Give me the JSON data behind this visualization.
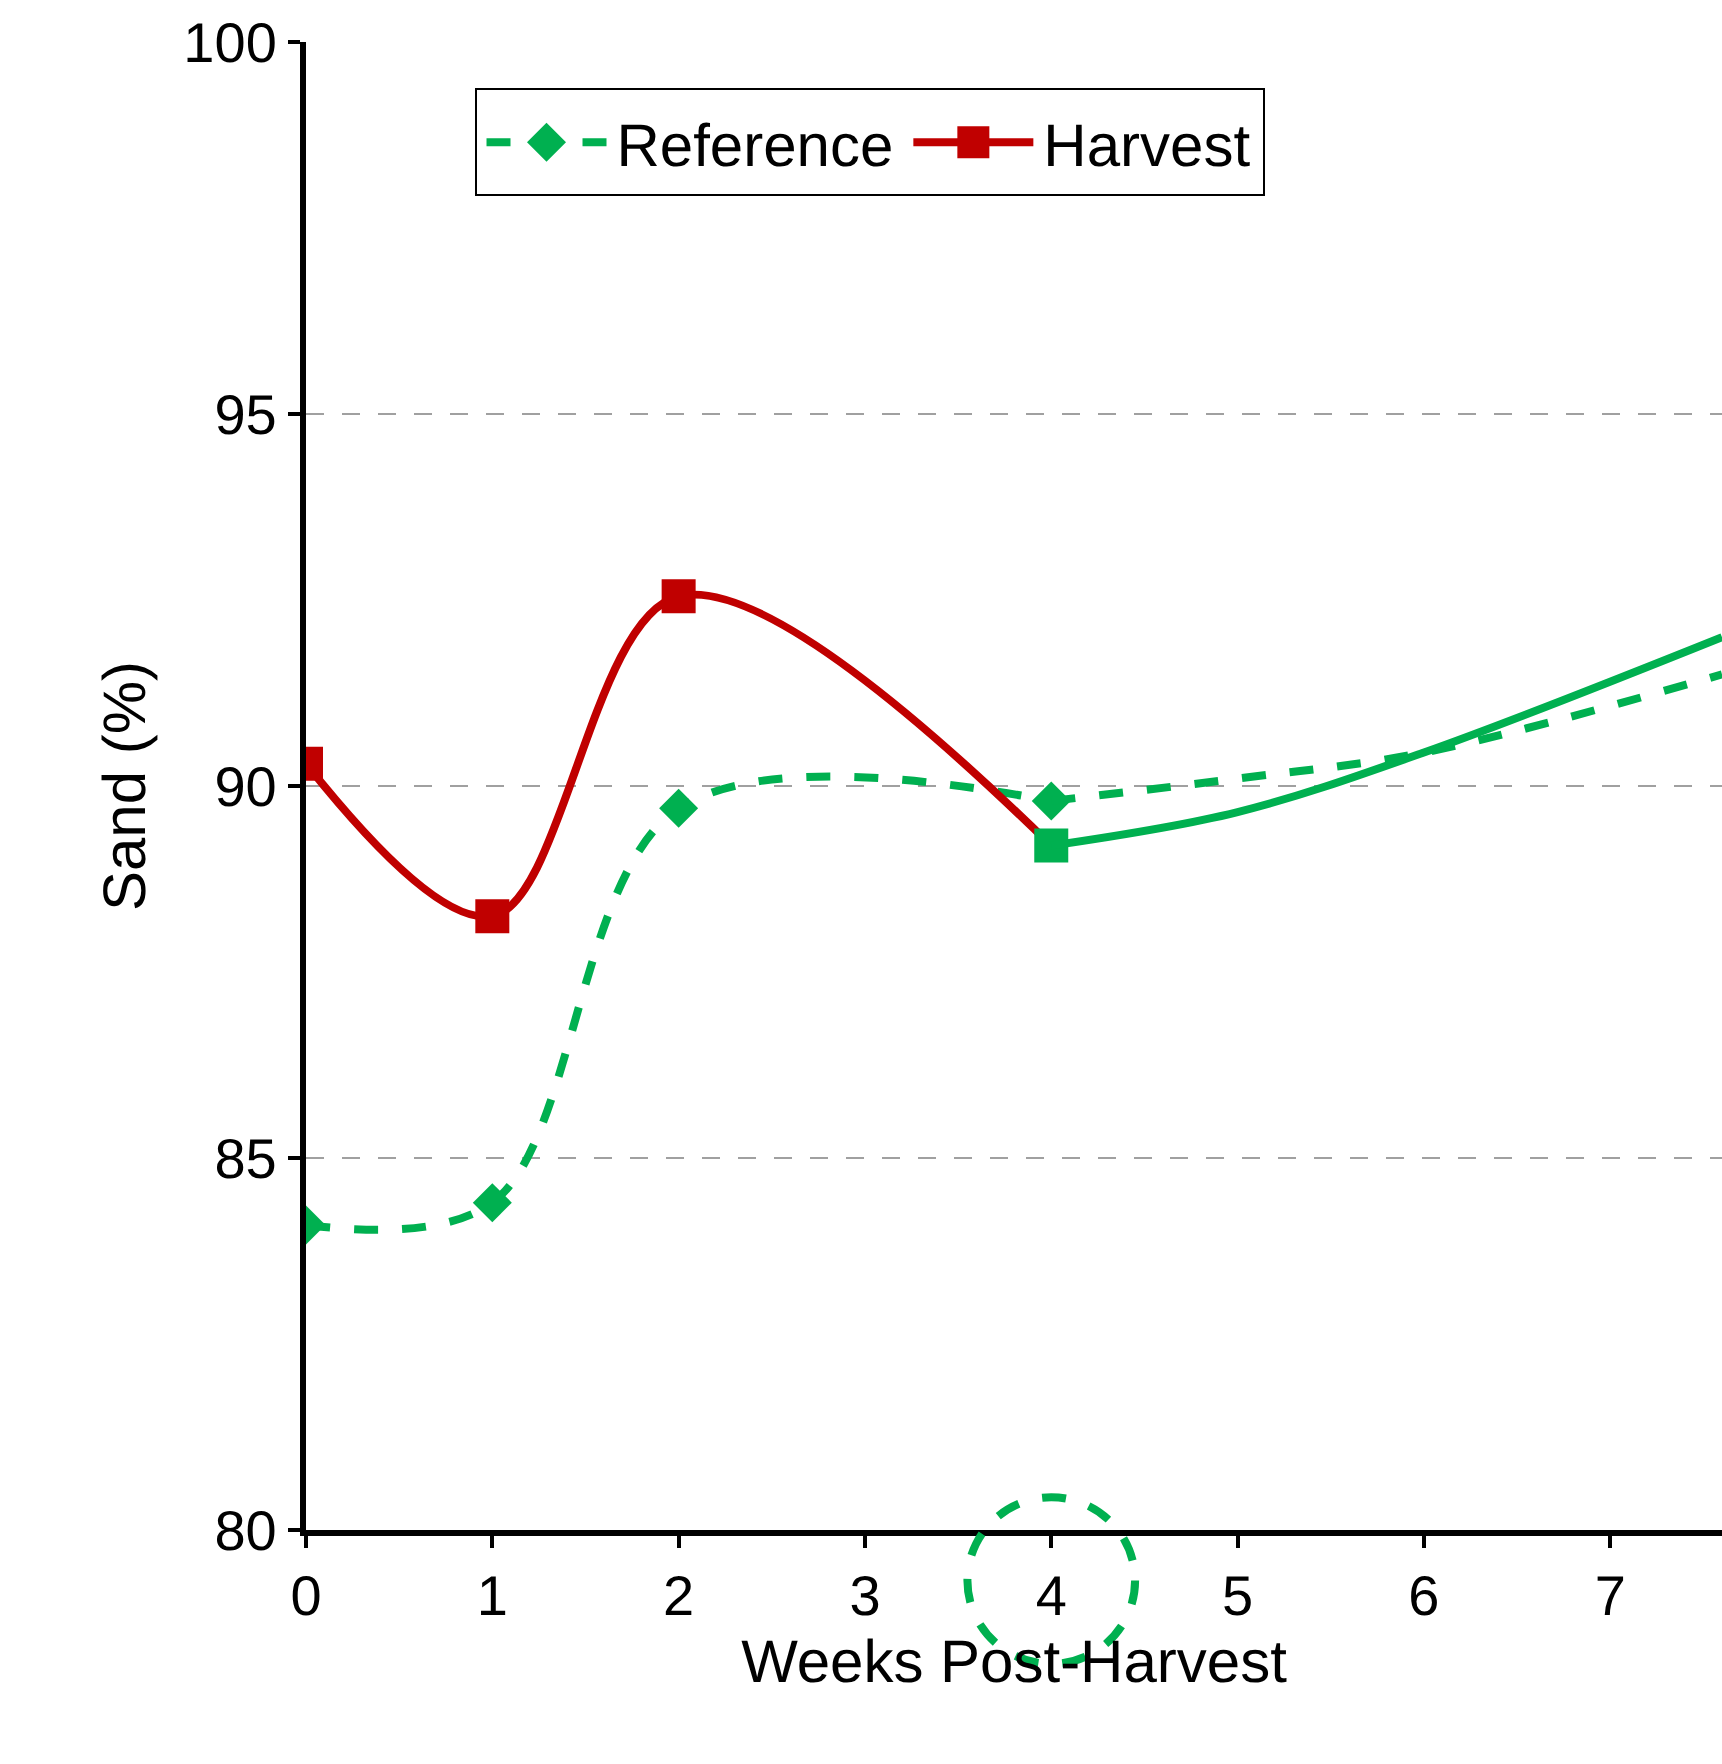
{
  "chart_data": {
    "type": "line",
    "xlabel": "Weeks Post-Harvest",
    "ylabel": "Sand (%)",
    "xlim": [
      0,
      7.6
    ],
    "xticks": [
      0,
      1,
      2,
      3,
      4,
      5,
      6,
      7
    ],
    "ylim": [
      80,
      100
    ],
    "yticks": [
      80,
      85,
      90,
      95,
      100
    ],
    "grid": "y",
    "legend": "top",
    "series": [
      {
        "name": "Reference",
        "color": "#00b050",
        "x": [
          0,
          1,
          2,
          4
        ],
        "values": [
          84.1,
          84.4,
          89.7,
          89.8
        ],
        "marker": "diamond",
        "line_style": "dashed"
      },
      {
        "name": "Harvest",
        "color": "#c00000",
        "colors": [
          "#c00000",
          "#c00000",
          "#c00000",
          "#00b050"
        ],
        "x": [
          0,
          1,
          2,
          4
        ],
        "values": [
          90.3,
          88.25,
          92.55,
          89.2
        ],
        "marker": "square",
        "line_style": "solid"
      },
      {
        "color": "#00b050",
        "x": [
          4,
          5,
          6,
          7.6
        ],
        "values": [
          89.8,
          90.1,
          90.45,
          91.5
        ],
        "marker": "none",
        "line_style": "dashed"
      },
      {
        "color": "#00b050",
        "x": [
          4,
          5,
          6,
          7.6
        ],
        "values": [
          89.2,
          89.65,
          90.45,
          92.0
        ],
        "marker": "none",
        "line_style": "solid"
      }
    ]
  }
}
